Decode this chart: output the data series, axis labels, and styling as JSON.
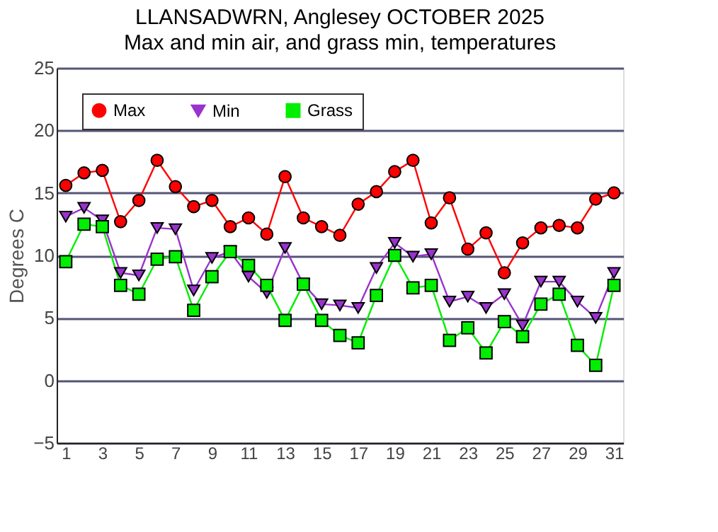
{
  "chart_data": {
    "type": "line",
    "title": "LLANSADWRN, Anglesey OCTOBER 2025",
    "subtitle": "Max and min air, and grass min, temperatures",
    "ylabel": "Degrees C",
    "x": [
      1,
      2,
      3,
      4,
      5,
      6,
      7,
      8,
      9,
      10,
      11,
      12,
      13,
      14,
      15,
      16,
      17,
      18,
      19,
      20,
      21,
      22,
      23,
      24,
      25,
      26,
      27,
      28,
      29,
      30,
      31
    ],
    "series": [
      {
        "name": "Max",
        "color": "#ff0000",
        "marker": "circle",
        "values": [
          15.6,
          16.6,
          16.8,
          12.7,
          14.4,
          17.6,
          15.5,
          13.9,
          14.4,
          12.3,
          13.0,
          11.7,
          16.3,
          13.0,
          12.3,
          11.6,
          14.1,
          15.1,
          16.7,
          17.6,
          12.6,
          14.6,
          10.5,
          11.8,
          8.6,
          11.0,
          12.2,
          12.4,
          12.2,
          14.5,
          15.0
        ]
      },
      {
        "name": "Min",
        "color": "#9933cc",
        "marker": "triangle-down",
        "values": [
          13.1,
          13.8,
          12.8,
          8.6,
          8.4,
          12.2,
          12.1,
          7.2,
          9.8,
          10.3,
          8.3,
          7.0,
          10.6,
          7.7,
          6.1,
          6.0,
          5.8,
          9.0,
          11.0,
          9.9,
          10.1,
          6.3,
          6.7,
          5.8,
          6.9,
          4.4,
          7.9,
          7.9,
          6.3,
          5.0,
          8.6
        ]
      },
      {
        "name": "Grass",
        "color": "#00ee00",
        "marker": "square",
        "values": [
          9.5,
          12.5,
          12.3,
          7.6,
          6.9,
          9.7,
          9.9,
          5.6,
          8.3,
          10.3,
          9.2,
          7.6,
          4.8,
          7.7,
          4.8,
          3.6,
          3.0,
          6.8,
          10.0,
          7.4,
          7.6,
          3.2,
          4.2,
          2.2,
          4.7,
          3.5,
          6.1,
          6.9,
          2.8,
          1.2,
          7.6
        ]
      }
    ],
    "xlim": [
      0.5,
      31.5
    ],
    "xticks": [
      1,
      3,
      5,
      7,
      9,
      11,
      13,
      15,
      17,
      19,
      21,
      23,
      25,
      27,
      29,
      31
    ],
    "ylim": [
      -5,
      25
    ],
    "yticks": [
      -5,
      0,
      5,
      10,
      15,
      20,
      25
    ],
    "grid": "y",
    "legend": "top left",
    "line_style": "solid"
  }
}
